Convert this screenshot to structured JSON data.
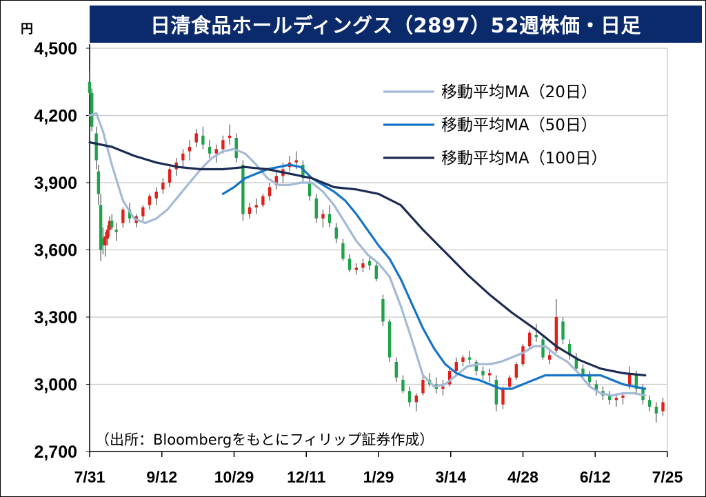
{
  "header": {
    "title": "日清食品ホールディングス（2897）52週株価・日足",
    "unit": "円"
  },
  "source_note": "（出所：Bloombergをもとにフィリップ証券作成）",
  "colors": {
    "up": "#e0201b",
    "down": "#1fa34a",
    "ma20": "#a4b9d6",
    "ma50": "#1673c6",
    "ma100": "#1b2d52",
    "grid": "#c8c8c8",
    "title_bg": "#0a2a6b"
  },
  "chart_data": {
    "type": "candlestick",
    "title": "日清食品ホールディングス（2897）52週株価・日足",
    "ylabel": "円",
    "ylim": [
      2700,
      4500
    ],
    "yticks": [
      "2,700",
      "3,000",
      "3,300",
      "3,600",
      "3,900",
      "4,200",
      "4,500"
    ],
    "ytick_values": [
      2700,
      3000,
      3300,
      3600,
      3900,
      4200,
      4500
    ],
    "xticks": [
      "7/31",
      "9/12",
      "10/29",
      "12/11",
      "1/29",
      "3/14",
      "4/28",
      "6/12",
      "7/25"
    ],
    "grid": true,
    "legend_position": "top-right",
    "series": [
      {
        "name": "移動平均MA（20日）",
        "key": "ma20",
        "values": [
          [
            0,
            4200
          ],
          [
            3,
            4210
          ],
          [
            6,
            4130
          ],
          [
            10,
            3980
          ],
          [
            15,
            3820
          ],
          [
            20,
            3740
          ],
          [
            25,
            3720
          ],
          [
            30,
            3740
          ],
          [
            35,
            3780
          ],
          [
            40,
            3840
          ],
          [
            45,
            3900
          ],
          [
            50,
            3960
          ],
          [
            55,
            4010
          ],
          [
            60,
            4040
          ],
          [
            65,
            4050
          ],
          [
            70,
            4030
          ],
          [
            75,
            3980
          ],
          [
            80,
            3920
          ],
          [
            85,
            3890
          ],
          [
            90,
            3890
          ],
          [
            95,
            3900
          ],
          [
            100,
            3900
          ],
          [
            105,
            3860
          ],
          [
            110,
            3800
          ],
          [
            115,
            3720
          ],
          [
            120,
            3640
          ],
          [
            125,
            3580
          ],
          [
            130,
            3540
          ],
          [
            135,
            3480
          ],
          [
            140,
            3350
          ],
          [
            145,
            3200
          ],
          [
            150,
            3040
          ],
          [
            155,
            2990
          ],
          [
            160,
            3000
          ],
          [
            165,
            3040
          ],
          [
            170,
            3080
          ],
          [
            175,
            3090
          ],
          [
            180,
            3090
          ],
          [
            185,
            3100
          ],
          [
            190,
            3120
          ],
          [
            195,
            3140
          ],
          [
            200,
            3170
          ],
          [
            205,
            3170
          ],
          [
            210,
            3130
          ],
          [
            215,
            3100
          ],
          [
            220,
            3050
          ],
          [
            225,
            2990
          ],
          [
            230,
            2960
          ],
          [
            235,
            2950
          ],
          [
            240,
            2960
          ],
          [
            245,
            2960
          ],
          [
            250,
            2950
          ]
        ]
      },
      {
        "name": "移動平均MA（50日）",
        "key": "ma50",
        "values": [
          [
            60,
            3850
          ],
          [
            65,
            3880
          ],
          [
            70,
            3920
          ],
          [
            75,
            3940
          ],
          [
            80,
            3960
          ],
          [
            85,
            3970
          ],
          [
            90,
            3980
          ],
          [
            95,
            3970
          ],
          [
            100,
            3920
          ],
          [
            105,
            3890
          ],
          [
            110,
            3860
          ],
          [
            115,
            3820
          ],
          [
            120,
            3760
          ],
          [
            125,
            3690
          ],
          [
            130,
            3620
          ],
          [
            135,
            3560
          ],
          [
            140,
            3470
          ],
          [
            145,
            3360
          ],
          [
            150,
            3250
          ],
          [
            155,
            3160
          ],
          [
            160,
            3090
          ],
          [
            165,
            3050
          ],
          [
            170,
            3030
          ],
          [
            175,
            3020
          ],
          [
            180,
            3000
          ],
          [
            185,
            2980
          ],
          [
            190,
            2980
          ],
          [
            195,
            3000
          ],
          [
            200,
            3020
          ],
          [
            205,
            3040
          ],
          [
            210,
            3040
          ],
          [
            215,
            3040
          ],
          [
            220,
            3040
          ],
          [
            225,
            3040
          ],
          [
            230,
            3040
          ],
          [
            235,
            3020
          ],
          [
            240,
            3000
          ],
          [
            245,
            2990
          ],
          [
            250,
            2980
          ]
        ]
      },
      {
        "name": "移動平均MA（100日）",
        "key": "ma100",
        "values": [
          [
            0,
            4080
          ],
          [
            10,
            4060
          ],
          [
            20,
            4020
          ],
          [
            30,
            3990
          ],
          [
            40,
            3970
          ],
          [
            50,
            3960
          ],
          [
            60,
            3960
          ],
          [
            70,
            3970
          ],
          [
            80,
            3960
          ],
          [
            90,
            3940
          ],
          [
            100,
            3920
          ],
          [
            110,
            3880
          ],
          [
            120,
            3870
          ],
          [
            130,
            3850
          ],
          [
            140,
            3800
          ],
          [
            150,
            3690
          ],
          [
            160,
            3590
          ],
          [
            170,
            3490
          ],
          [
            180,
            3400
          ],
          [
            190,
            3320
          ],
          [
            200,
            3250
          ],
          [
            210,
            3170
          ],
          [
            220,
            3110
          ],
          [
            230,
            3070
          ],
          [
            240,
            3050
          ],
          [
            250,
            3040
          ]
        ]
      }
    ],
    "candles": [
      [
        0,
        4350,
        4400,
        4290,
        4300
      ],
      [
        1,
        4300,
        4320,
        4130,
        4150
      ],
      [
        3,
        4120,
        4150,
        3960,
        4000
      ],
      [
        4,
        3950,
        3980,
        3800,
        3850
      ],
      [
        5,
        3800,
        3850,
        3550,
        3600
      ],
      [
        6,
        3650,
        3700,
        3580,
        3620
      ],
      [
        7,
        3620,
        3680,
        3570,
        3660
      ],
      [
        8,
        3650,
        3710,
        3620,
        3690
      ],
      [
        9,
        3690,
        3750,
        3660,
        3730
      ],
      [
        10,
        3730,
        3760,
        3690,
        3700
      ],
      [
        12,
        3690,
        3720,
        3640,
        3680
      ],
      [
        15,
        3720,
        3790,
        3700,
        3780
      ],
      [
        18,
        3780,
        3810,
        3720,
        3740
      ],
      [
        21,
        3720,
        3760,
        3700,
        3750
      ],
      [
        24,
        3750,
        3800,
        3730,
        3790
      ],
      [
        27,
        3800,
        3850,
        3780,
        3840
      ],
      [
        30,
        3830,
        3880,
        3800,
        3860
      ],
      [
        33,
        3870,
        3920,
        3850,
        3900
      ],
      [
        36,
        3900,
        3970,
        3880,
        3960
      ],
      [
        39,
        3960,
        4010,
        3930,
        3990
      ],
      [
        42,
        4000,
        4050,
        3970,
        4030
      ],
      [
        45,
        4040,
        4090,
        4000,
        4060
      ],
      [
        48,
        4080,
        4140,
        4060,
        4120
      ],
      [
        51,
        4110,
        4150,
        4050,
        4070
      ],
      [
        54,
        4060,
        4090,
        4010,
        4030
      ],
      [
        57,
        4030,
        4070,
        3990,
        4050
      ],
      [
        60,
        4050,
        4110,
        4030,
        4090
      ],
      [
        63,
        4100,
        4160,
        4070,
        4110
      ],
      [
        66,
        4100,
        4120,
        3990,
        4010
      ],
      [
        69,
        3980,
        4000,
        3730,
        3760
      ],
      [
        72,
        3760,
        3810,
        3740,
        3790
      ],
      [
        75,
        3790,
        3830,
        3760,
        3800
      ],
      [
        78,
        3800,
        3850,
        3790,
        3840
      ],
      [
        81,
        3840,
        3900,
        3820,
        3880
      ],
      [
        84,
        3890,
        3950,
        3870,
        3930
      ],
      [
        87,
        3930,
        3990,
        3900,
        3960
      ],
      [
        90,
        3970,
        4020,
        3950,
        3990
      ],
      [
        93,
        3990,
        4040,
        3960,
        4000
      ],
      [
        96,
        3980,
        4000,
        3900,
        3920
      ],
      [
        99,
        3900,
        3920,
        3820,
        3840
      ],
      [
        102,
        3830,
        3850,
        3720,
        3740
      ],
      [
        105,
        3740,
        3780,
        3700,
        3760
      ],
      [
        108,
        3760,
        3800,
        3700,
        3720
      ],
      [
        111,
        3700,
        3720,
        3630,
        3650
      ],
      [
        114,
        3630,
        3650,
        3550,
        3560
      ],
      [
        117,
        3560,
        3580,
        3500,
        3510
      ],
      [
        120,
        3510,
        3540,
        3490,
        3520
      ],
      [
        123,
        3520,
        3560,
        3500,
        3540
      ],
      [
        126,
        3550,
        3570,
        3510,
        3530
      ],
      [
        129,
        3530,
        3550,
        3460,
        3470
      ],
      [
        132,
        3380,
        3400,
        3260,
        3280
      ],
      [
        135,
        3280,
        3290,
        3100,
        3120
      ],
      [
        138,
        3100,
        3120,
        3010,
        3030
      ],
      [
        141,
        3020,
        3040,
        2960,
        2970
      ],
      [
        144,
        2970,
        2990,
        2900,
        2920
      ],
      [
        147,
        2920,
        2960,
        2880,
        2950
      ],
      [
        150,
        2960,
        3040,
        2950,
        3020
      ],
      [
        153,
        3020,
        3050,
        2990,
        3000
      ],
      [
        156,
        3000,
        3030,
        2960,
        2980
      ],
      [
        159,
        2980,
        3020,
        2950,
        2990
      ],
      [
        162,
        3000,
        3080,
        2990,
        3060
      ],
      [
        165,
        3060,
        3120,
        3040,
        3100
      ],
      [
        168,
        3100,
        3130,
        3080,
        3120
      ],
      [
        171,
        3120,
        3150,
        3090,
        3110
      ],
      [
        174,
        3100,
        3110,
        3040,
        3060
      ],
      [
        177,
        3060,
        3080,
        3020,
        3040
      ],
      [
        180,
        3040,
        3070,
        3010,
        3050
      ],
      [
        183,
        3020,
        3040,
        2880,
        2910
      ],
      [
        186,
        2910,
        2990,
        2890,
        2980
      ],
      [
        189,
        2990,
        3040,
        2980,
        3030
      ],
      [
        192,
        3030,
        3100,
        3020,
        3090
      ],
      [
        195,
        3090,
        3180,
        3080,
        3170
      ],
      [
        198,
        3170,
        3240,
        3160,
        3230
      ],
      [
        201,
        3220,
        3270,
        3190,
        3210
      ],
      [
        204,
        3200,
        3220,
        3110,
        3120
      ],
      [
        207,
        3110,
        3160,
        3090,
        3130
      ],
      [
        210,
        3150,
        3380,
        3140,
        3300
      ],
      [
        213,
        3280,
        3300,
        3180,
        3200
      ],
      [
        216,
        3180,
        3200,
        3110,
        3130
      ],
      [
        219,
        3120,
        3140,
        3060,
        3070
      ],
      [
        222,
        3070,
        3090,
        3020,
        3040
      ],
      [
        225,
        3040,
        3060,
        2990,
        3010
      ],
      [
        228,
        3000,
        3020,
        2950,
        2970
      ],
      [
        231,
        2970,
        2990,
        2930,
        2950
      ],
      [
        234,
        2950,
        2970,
        2910,
        2930
      ],
      [
        237,
        2930,
        2960,
        2900,
        2940
      ],
      [
        240,
        2940,
        2960,
        2910,
        2950
      ],
      [
        243,
        2990,
        3080,
        2980,
        3050
      ],
      [
        246,
        3040,
        3060,
        2960,
        2980
      ],
      [
        249,
        2980,
        3000,
        2910,
        2930
      ],
      [
        252,
        2930,
        2950,
        2880,
        2900
      ],
      [
        255,
        2900,
        2920,
        2830,
        2870
      ],
      [
        258,
        2880,
        2940,
        2860,
        2920
      ]
    ]
  },
  "legend": [
    {
      "label": "移動平均MA（20日）",
      "color_key": "ma20"
    },
    {
      "label": "移動平均MA（50日）",
      "color_key": "ma50"
    },
    {
      "label": "移動平均MA（100日）",
      "color_key": "ma100"
    }
  ]
}
